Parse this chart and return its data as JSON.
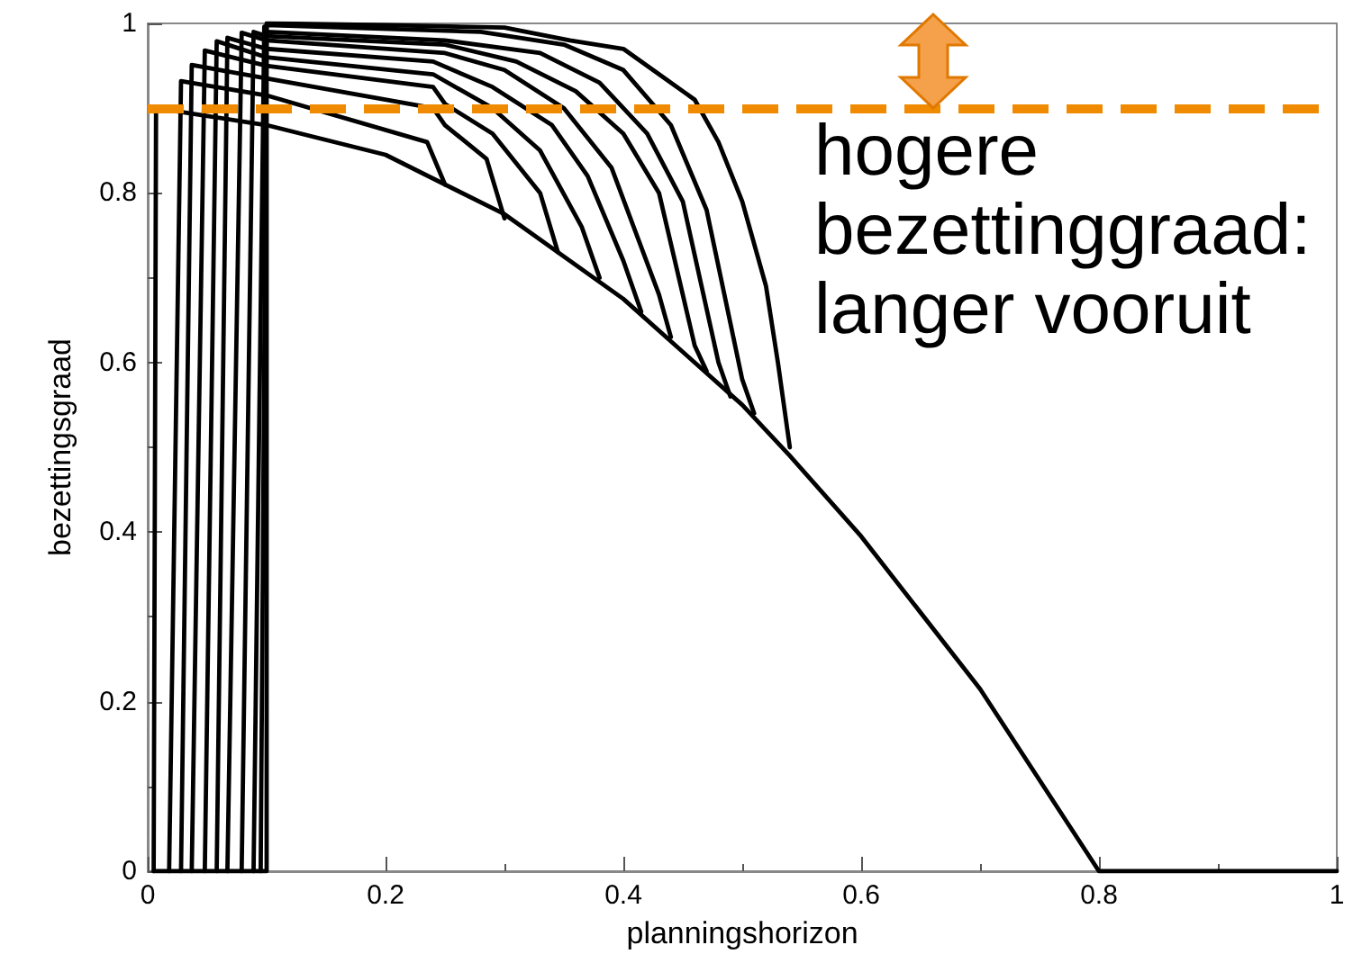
{
  "chart_data": {
    "type": "line",
    "xlabel": "planningshorizon",
    "ylabel": "bezettingsgraad",
    "xlim": [
      0,
      1
    ],
    "ylim": [
      0,
      1
    ],
    "xticks": [
      0,
      0.2,
      0.4,
      0.6,
      0.8,
      1
    ],
    "yticks": [
      0,
      0.2,
      0.4,
      0.6,
      0.8,
      1
    ],
    "marker": "none",
    "line_style": "solid",
    "annotations": [
      "hogere\nbezettinggraad:\nlanger vooruit"
    ],
    "ref_lines": [
      {
        "axis": "y",
        "value": 0.9,
        "label": null,
        "color": "#f08a00",
        "line_style": "dashed"
      }
    ],
    "series": [
      {
        "color": "#000000",
        "x": [
          0.005,
          0.007,
          0.1,
          0.2,
          0.3,
          0.4,
          0.5,
          0.54,
          0.6,
          0.7,
          0.8,
          1
        ],
        "values": [
          0,
          0.9,
          0.88,
          0.845,
          0.775,
          0.675,
          0.55,
          0.49,
          0.395,
          0.215,
          0,
          0
        ]
      },
      {
        "color": "#000000",
        "x": [
          0.005,
          0.1,
          0.1,
          0.2,
          0.3,
          0.355,
          0.4,
          0.43,
          0.46,
          0.48,
          0.5,
          0.52,
          0.53,
          0.54
        ],
        "values": [
          0,
          0,
          1.0,
          0.998,
          0.995,
          0.98,
          0.97,
          0.94,
          0.91,
          0.86,
          0.79,
          0.69,
          0.6,
          0.5
        ]
      },
      {
        "color": "#000000",
        "x": [
          0.018,
          0.028,
          0.1,
          0.235,
          0.25
        ],
        "values": [
          0,
          0.932,
          0.915,
          0.86,
          0.81
        ]
      },
      {
        "color": "#000000",
        "x": [
          0.028,
          0.037,
          0.1,
          0.24,
          0.25,
          0.285,
          0.3
        ],
        "values": [
          0,
          0.951,
          0.935,
          0.9,
          0.88,
          0.84,
          0.77
        ]
      },
      {
        "color": "#000000",
        "x": [
          0.037,
          0.048,
          0.1,
          0.24,
          0.25,
          0.29,
          0.33,
          0.345
        ],
        "values": [
          0,
          0.968,
          0.95,
          0.925,
          0.905,
          0.87,
          0.8,
          0.73
        ]
      },
      {
        "color": "#000000",
        "x": [
          0.048,
          0.058,
          0.1,
          0.24,
          0.29,
          0.33,
          0.365,
          0.38
        ],
        "values": [
          0,
          0.979,
          0.96,
          0.94,
          0.9,
          0.85,
          0.76,
          0.7
        ]
      },
      {
        "color": "#000000",
        "x": [
          0.058,
          0.067,
          0.1,
          0.24,
          0.29,
          0.34,
          0.37,
          0.4,
          0.415
        ],
        "values": [
          0,
          0.983,
          0.97,
          0.955,
          0.925,
          0.88,
          0.82,
          0.72,
          0.66
        ]
      },
      {
        "color": "#000000",
        "x": [
          0.067,
          0.079,
          0.1,
          0.25,
          0.3,
          0.35,
          0.39,
          0.43,
          0.44
        ],
        "values": [
          0,
          0.989,
          0.98,
          0.965,
          0.945,
          0.9,
          0.83,
          0.68,
          0.63
        ]
      },
      {
        "color": "#000000",
        "x": [
          0.079,
          0.089,
          0.1,
          0.25,
          0.31,
          0.36,
          0.4,
          0.43,
          0.46,
          0.47
        ],
        "values": [
          0,
          0.99,
          0.985,
          0.975,
          0.955,
          0.92,
          0.87,
          0.8,
          0.62,
          0.59
        ]
      },
      {
        "color": "#000000",
        "x": [
          0.089,
          0.098,
          0.1,
          0.25,
          0.33,
          0.38,
          0.42,
          0.45,
          0.48,
          0.49
        ],
        "values": [
          0,
          0.996,
          0.99,
          0.98,
          0.965,
          0.93,
          0.87,
          0.79,
          0.6,
          0.56
        ]
      },
      {
        "color": "#000000",
        "x": [
          0.095,
          0.1,
          0.28,
          0.35,
          0.4,
          0.44,
          0.47,
          0.5,
          0.51
        ],
        "values": [
          0,
          0.998,
          0.99,
          0.975,
          0.945,
          0.88,
          0.78,
          0.58,
          0.54
        ]
      }
    ]
  }
}
